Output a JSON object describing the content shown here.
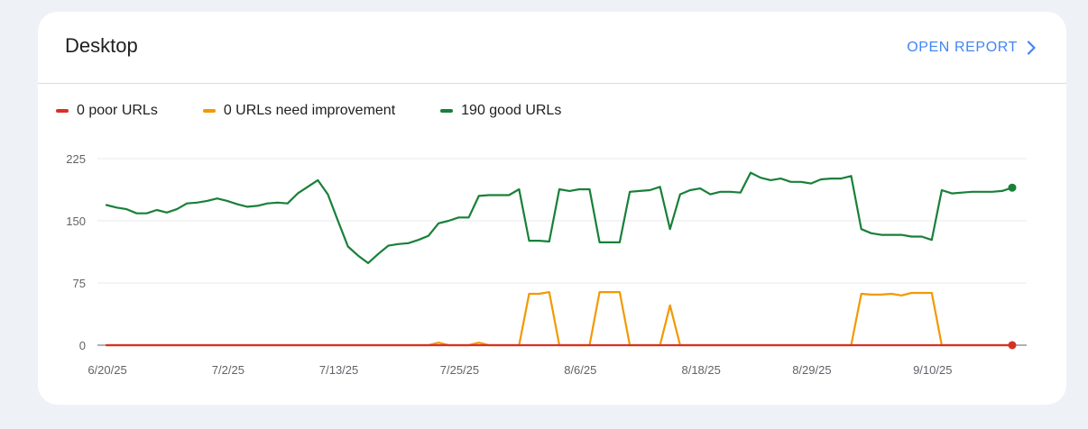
{
  "card": {
    "title": "Desktop",
    "open_report_label": "OPEN REPORT",
    "open_report_icon": "chevron-right-icon"
  },
  "legend": [
    {
      "label": "0 poor URLs",
      "color": "#d93025"
    },
    {
      "label": "0 URLs need improvement",
      "color": "#f29900"
    },
    {
      "label": "190 good URLs",
      "color": "#188038"
    }
  ],
  "chart_data": {
    "type": "line",
    "ylim": [
      0,
      225
    ],
    "yticks": [
      0,
      75,
      150,
      225
    ],
    "xlim": [
      0,
      90
    ],
    "xtick_labels": [
      {
        "label": "6/20/25",
        "x": 0
      },
      {
        "label": "7/2/25",
        "x": 12
      },
      {
        "label": "7/13/25",
        "x": 23
      },
      {
        "label": "7/25/25",
        "x": 35
      },
      {
        "label": "8/6/25",
        "x": 47
      },
      {
        "label": "8/18/25",
        "x": 59
      },
      {
        "label": "8/29/25",
        "x": 70
      },
      {
        "label": "9/10/25",
        "x": 82
      }
    ],
    "series": [
      {
        "key": "good",
        "color": "#188038",
        "x": [
          0,
          1,
          2,
          3,
          4,
          5,
          6,
          7,
          8,
          9,
          10,
          11,
          12,
          13,
          14,
          15,
          16,
          17,
          18,
          19,
          20,
          21,
          22,
          23,
          24,
          25,
          26,
          27,
          28,
          29,
          30,
          31,
          32,
          33,
          34,
          35,
          36,
          37,
          38,
          39,
          40,
          41,
          42,
          43,
          44,
          45,
          46,
          47,
          48,
          49,
          50,
          51,
          52,
          53,
          54,
          55,
          56,
          57,
          58,
          59,
          60,
          61,
          62,
          63,
          64,
          65,
          66,
          67,
          68,
          69,
          70,
          71,
          72,
          73,
          74,
          75,
          76,
          77,
          78,
          79,
          80,
          81,
          82,
          83,
          84,
          85,
          86,
          87,
          88,
          89,
          90
        ],
        "values": [
          169,
          166,
          164,
          159,
          159,
          163,
          160,
          164,
          171,
          172,
          174,
          177,
          174,
          170,
          167,
          168,
          171,
          172,
          171,
          183,
          191,
          199,
          182,
          150,
          119,
          108,
          99,
          110,
          120,
          122,
          123,
          127,
          132,
          147,
          150,
          154,
          154,
          180,
          181,
          181,
          181,
          188,
          126,
          126,
          125,
          188,
          186,
          188,
          188,
          124,
          124,
          124,
          185,
          186,
          187,
          191,
          140,
          182,
          187,
          189,
          182,
          185,
          185,
          184,
          208,
          202,
          199,
          201,
          197,
          197,
          195,
          200,
          201,
          201,
          204,
          140,
          135,
          133,
          133,
          133,
          131,
          131,
          127,
          187,
          183,
          184,
          185,
          185,
          185,
          186,
          190
        ]
      },
      {
        "key": "needs_improvement",
        "color": "#f29900",
        "x": [
          0,
          32,
          33,
          34,
          35,
          36,
          37,
          38,
          39,
          40,
          41,
          42,
          43,
          44,
          45,
          46,
          47,
          48,
          49,
          50,
          51,
          52,
          53,
          54,
          55,
          56,
          57,
          58,
          59,
          74,
          75,
          76,
          77,
          78,
          79,
          80,
          81,
          82,
          83,
          90
        ],
        "values": [
          0,
          0,
          3,
          0,
          0,
          0,
          3,
          0,
          0,
          0,
          0,
          62,
          62,
          64,
          0,
          0,
          0,
          0,
          64,
          64,
          64,
          0,
          0,
          0,
          0,
          48,
          0,
          0,
          0,
          0,
          62,
          61,
          61,
          62,
          60,
          63,
          63,
          63,
          0,
          0
        ]
      },
      {
        "key": "poor",
        "color": "#d93025",
        "x": [
          0,
          90
        ],
        "values": [
          0,
          0
        ]
      }
    ]
  }
}
